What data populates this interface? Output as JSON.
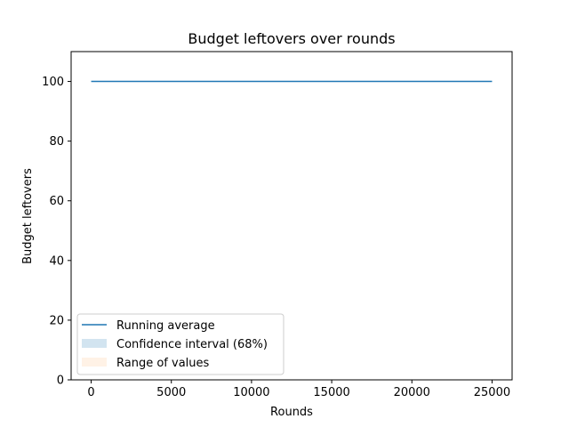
{
  "chart_data": {
    "type": "line",
    "title": "Budget leftovers over rounds",
    "xlabel": "Rounds",
    "ylabel": "Budget leftovers",
    "xlim": [
      -1250,
      26250
    ],
    "ylim": [
      0,
      110
    ],
    "xticks": [
      0,
      5000,
      10000,
      15000,
      20000,
      25000
    ],
    "yticks": [
      0,
      20,
      40,
      60,
      80,
      100
    ],
    "grid": false,
    "legend_position": "lower-left",
    "series": [
      {
        "name": "Running average",
        "kind": "line",
        "color": "#1f77b4",
        "x": [
          0,
          25000
        ],
        "y": [
          100,
          100
        ]
      },
      {
        "name": "Confidence interval (68%)",
        "kind": "band",
        "color": "#1f77b4",
        "x": [
          0,
          25000
        ],
        "lower": [
          100,
          100
        ],
        "upper": [
          100,
          100
        ]
      },
      {
        "name": "Range of values",
        "kind": "band",
        "color": "#ff7f0e",
        "x": [
          0,
          25000
        ],
        "lower": [
          100,
          100
        ],
        "upper": [
          100,
          100
        ]
      }
    ]
  }
}
